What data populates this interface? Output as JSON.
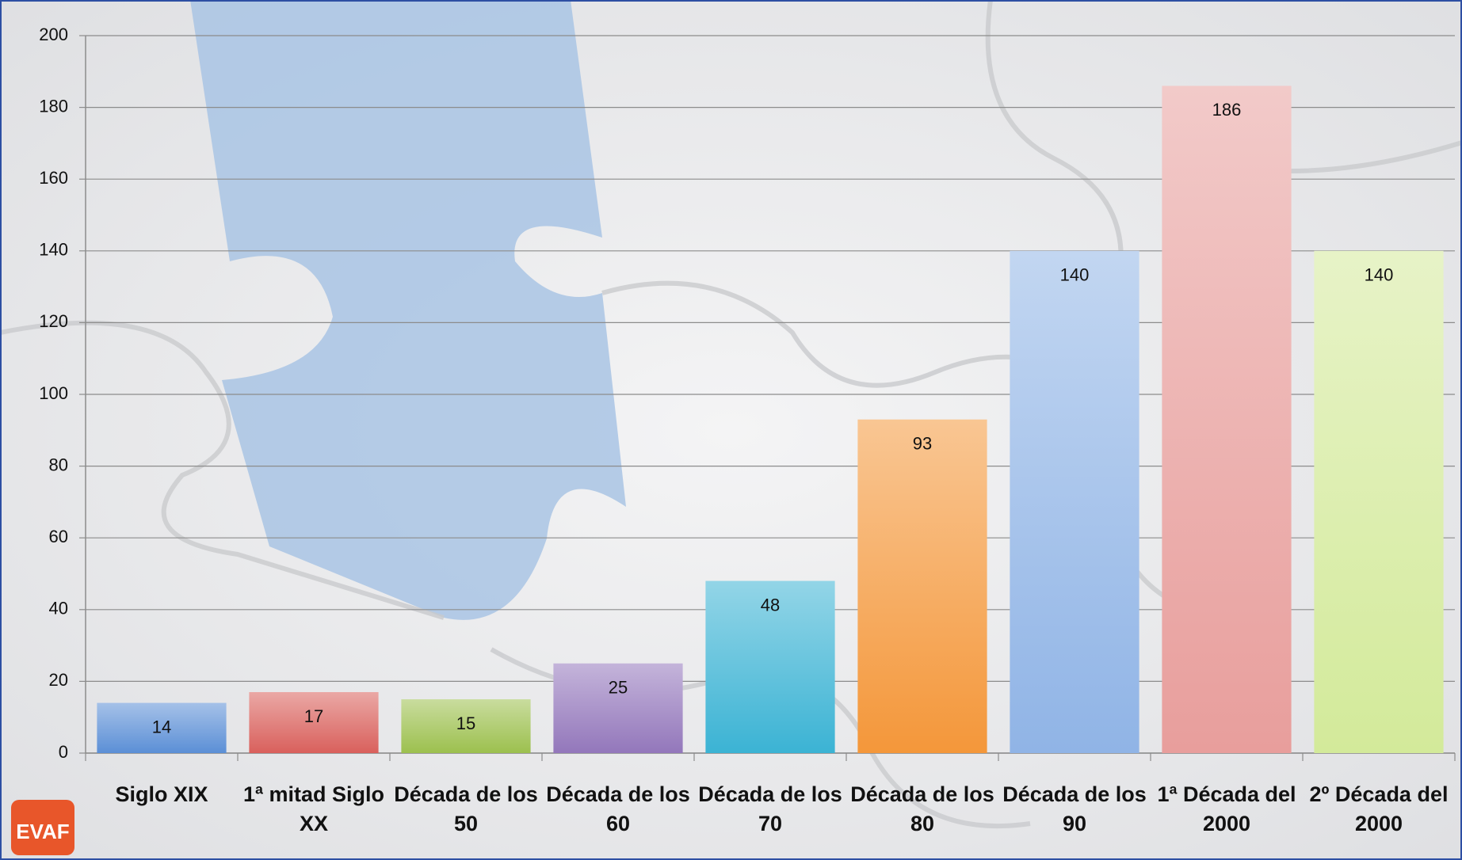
{
  "chart_data": {
    "type": "bar",
    "categories": [
      "Siglo XIX",
      "1ª mitad Siglo XX",
      "Década de los 50",
      "Década de los 60",
      "Década de los 70",
      "Década de los 80",
      "Década de los 90",
      "1ª Década del 2000",
      "2º Década del 2000"
    ],
    "values": [
      14,
      17,
      15,
      25,
      48,
      93,
      140,
      186,
      140
    ],
    "colors": [
      "#5b8fd6",
      "#d9605c",
      "#9cc04e",
      "#9377bb",
      "#3bb3d4",
      "#f4973a",
      "#90b4e6",
      "#e89e9c",
      "#d3ea9a"
    ],
    "ylim": [
      0,
      200
    ],
    "yticks": [
      0,
      20,
      40,
      60,
      80,
      100,
      120,
      140,
      160,
      180,
      200
    ],
    "grid": true
  },
  "logo": "EVAF"
}
